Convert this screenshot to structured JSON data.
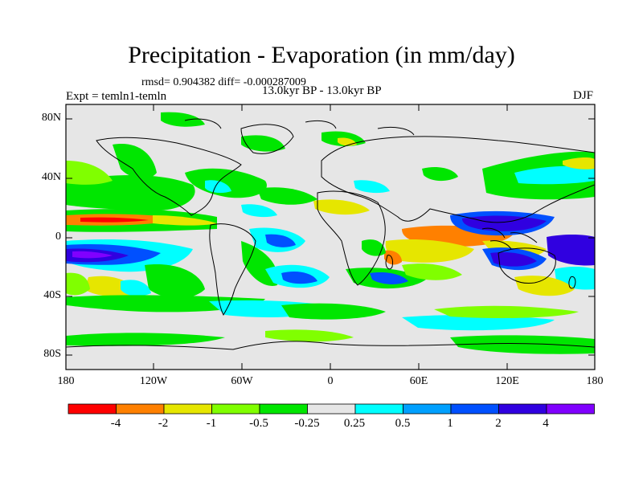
{
  "title": "Precipitation - Evaporation (in mm/day)",
  "stats": "rmsd= 0.904382 diff= -0.000287009",
  "experiment": "Expt = temln1-temln",
  "period": "13.0kyr BP - 13.0kyr BP",
  "season": "DJF",
  "lat_ticks": [
    "80N",
    "40N",
    "0",
    "40S",
    "80S"
  ],
  "lon_ticks": [
    "180",
    "120W",
    "60W",
    "0",
    "60E",
    "120E",
    "180"
  ],
  "colorbar": {
    "labels": [
      "-4",
      "-2",
      "-1",
      "-0.5",
      "-0.25",
      "0.25",
      "0.5",
      "1",
      "2",
      "4"
    ],
    "colors": [
      "#ff0000",
      "#ff8000",
      "#e6e600",
      "#80ff00",
      "#00e600",
      "#e6e6e6",
      "#00ffff",
      "#00a0ff",
      "#0050ff",
      "#3000e0",
      "#8000ff"
    ]
  },
  "colors": {
    "background": "#e6e6e6",
    "coast": "#000000"
  }
}
